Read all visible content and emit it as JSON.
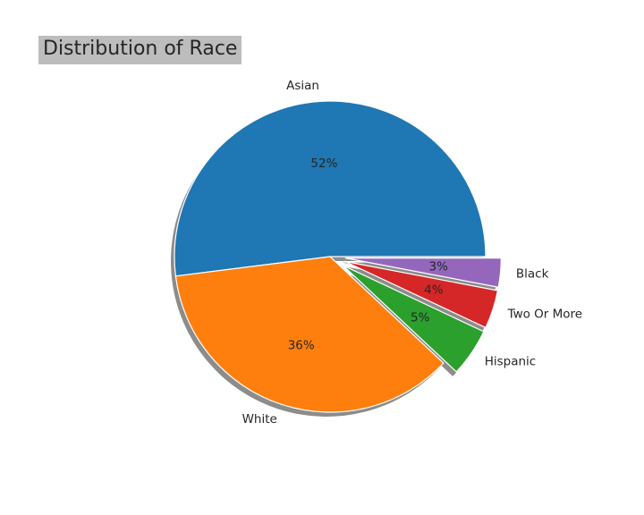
{
  "chart_data": {
    "type": "pie",
    "title": "Distribution of Race",
    "slices": [
      {
        "label": "Asian",
        "value": 52,
        "pct_label": "52%",
        "color": "#1f77b4",
        "exploded": false
      },
      {
        "label": "White",
        "value": 36,
        "pct_label": "36%",
        "color": "#ff7f0e",
        "exploded": false
      },
      {
        "label": "Hispanic",
        "value": 5,
        "pct_label": "5%",
        "color": "#2ca02c",
        "exploded": true
      },
      {
        "label": "Two Or More",
        "value": 4,
        "pct_label": "4%",
        "color": "#d62728",
        "exploded": true
      },
      {
        "label": "Black",
        "value": 3,
        "pct_label": "3%",
        "color": "#9467bd",
        "exploded": true
      }
    ],
    "shadow": true,
    "start_angle": 0,
    "direction": "counterclockwise"
  }
}
